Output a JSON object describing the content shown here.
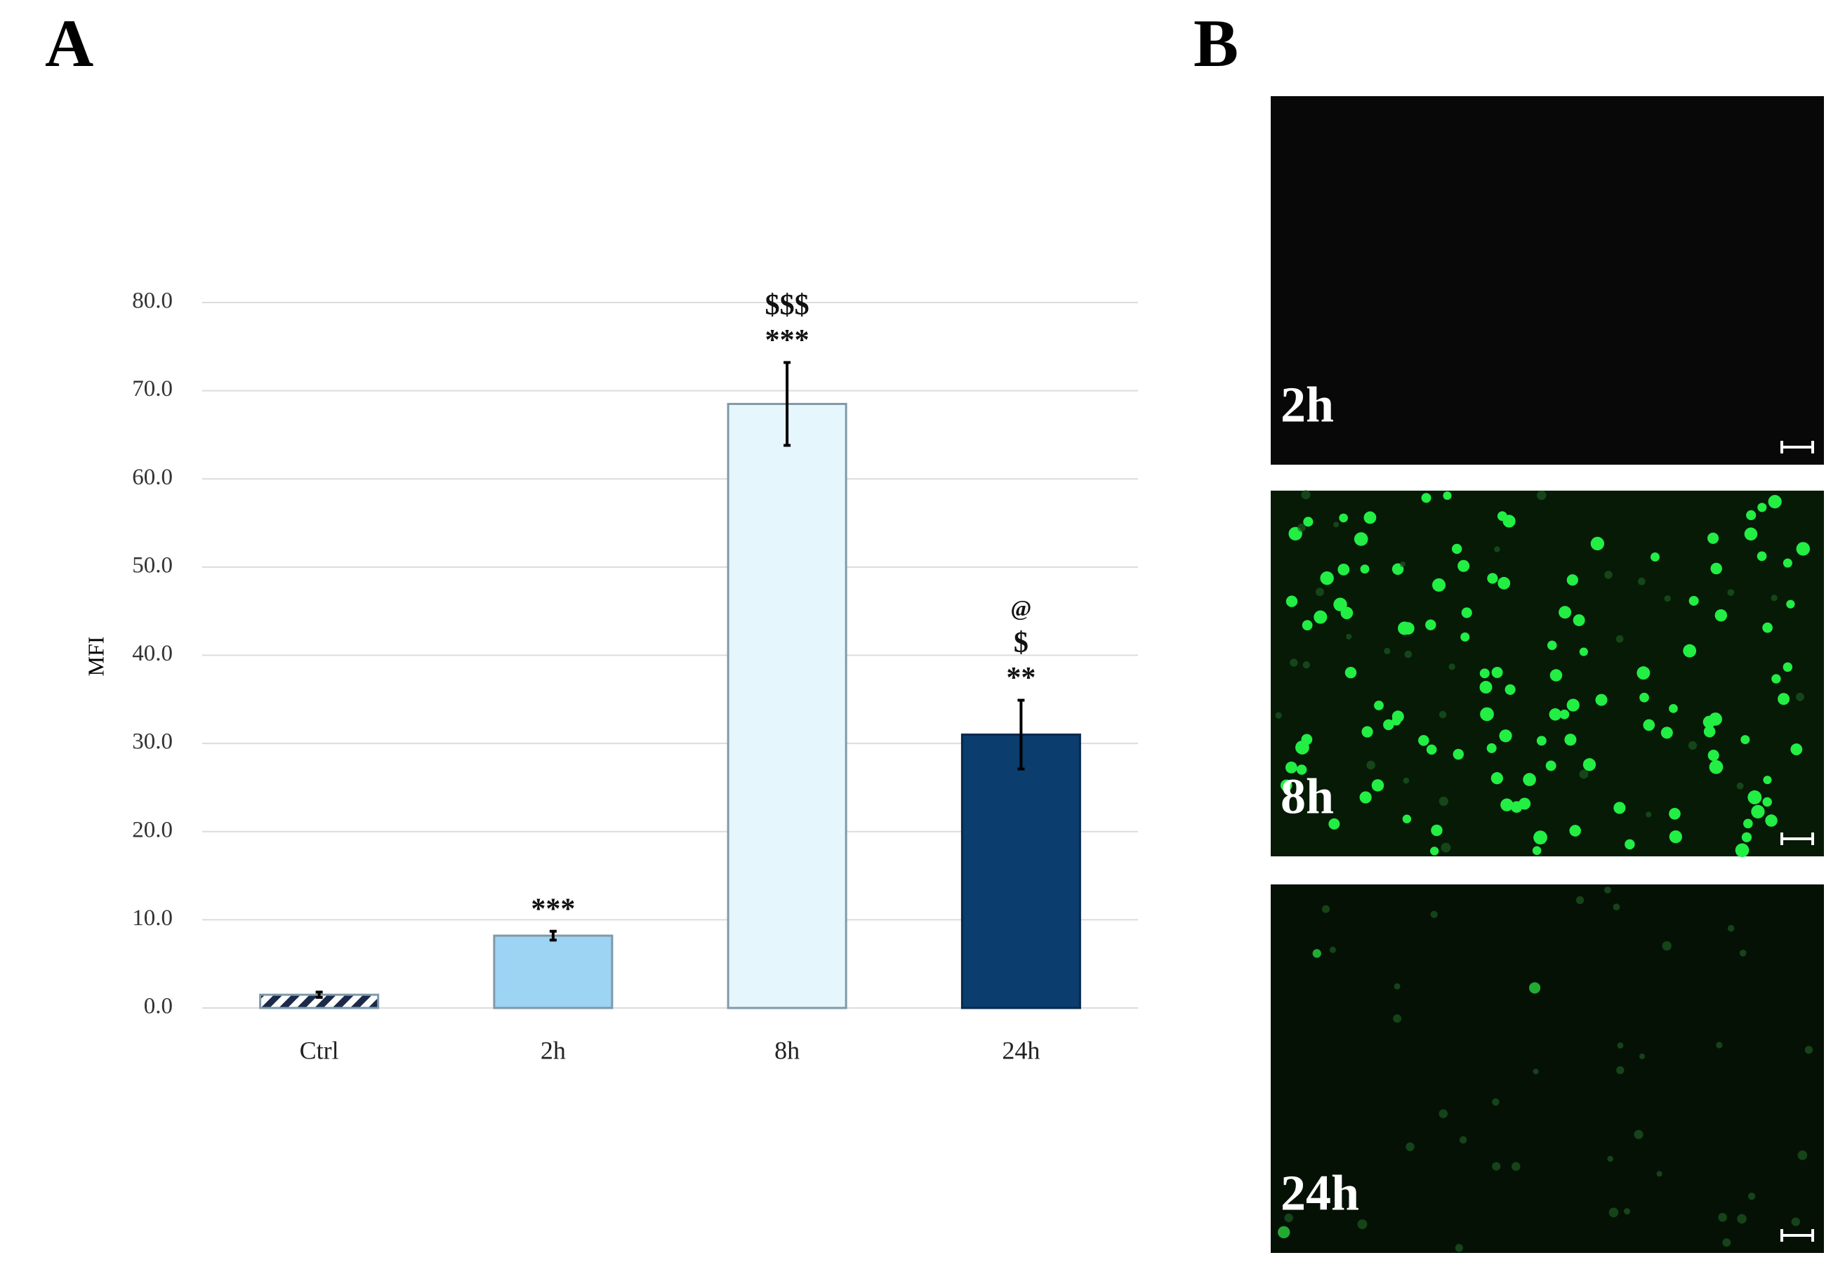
{
  "panel_labels": [
    "A",
    "B"
  ],
  "chart_data": {
    "type": "bar",
    "y_label": "MFI",
    "categories": [
      "Ctrl",
      "2h",
      "8h",
      "24h"
    ],
    "values": [
      1.5,
      8.2,
      68.5,
      31.0
    ],
    "errors": [
      0.3,
      0.5,
      4.7,
      3.9
    ],
    "colors": [
      "#ffffff",
      "#9dd3f3",
      "#e6f6fd",
      "#0b3d6e"
    ],
    "hatch": [
      true,
      false,
      false,
      false
    ],
    "annotations": [
      null,
      [
        "***"
      ],
      [
        "***",
        "$$$"
      ],
      [
        "**",
        "$",
        "@"
      ]
    ],
    "ylim": [
      0,
      80
    ],
    "yticks": [
      {
        "value": 0,
        "label": "0.0"
      },
      {
        "value": 10,
        "label": "10.0"
      },
      {
        "value": 20,
        "label": "20.0"
      },
      {
        "value": 30,
        "label": "30.0"
      },
      {
        "value": 40,
        "label": "40.0"
      },
      {
        "value": 50,
        "label": "50.0"
      },
      {
        "value": 60,
        "label": "60.0"
      },
      {
        "value": 70,
        "label": "70.0"
      },
      {
        "value": 80,
        "label": "80.0"
      }
    ],
    "grid": true
  },
  "images": [
    {
      "label": "2h"
    },
    {
      "label": "8h"
    },
    {
      "label": "24h"
    }
  ]
}
